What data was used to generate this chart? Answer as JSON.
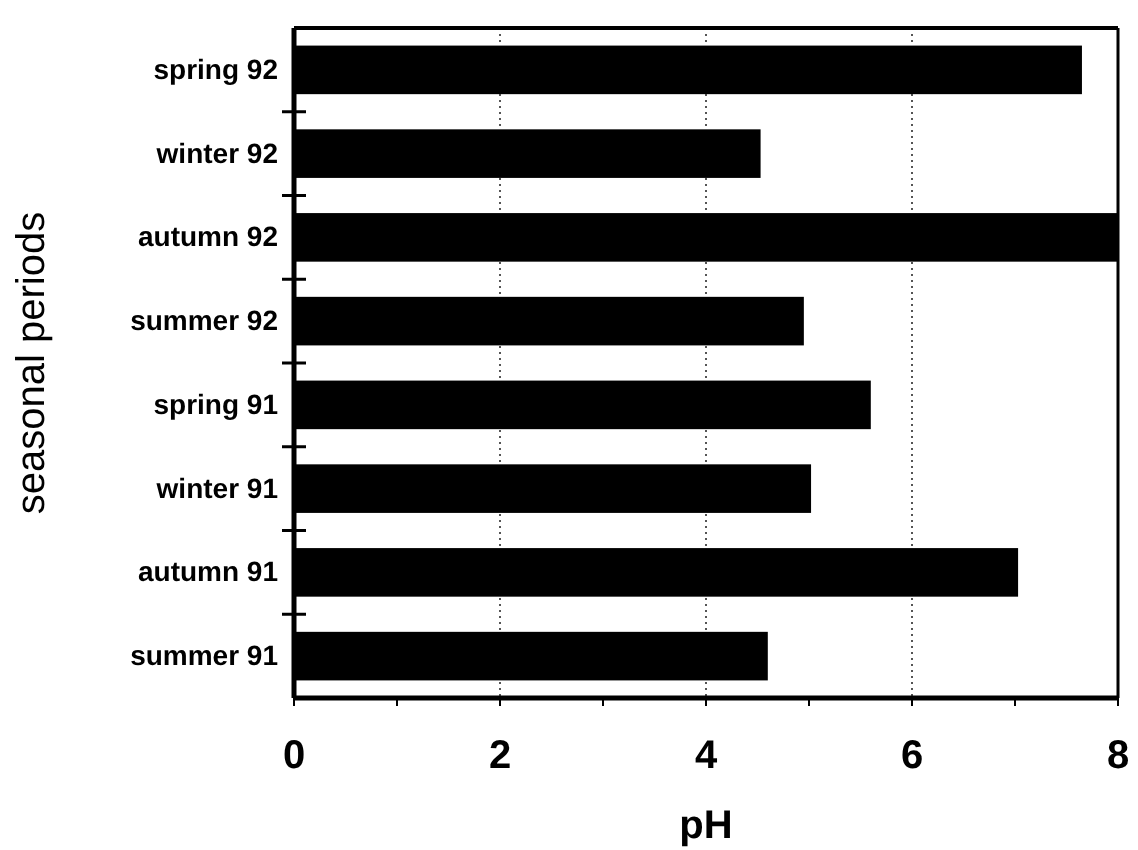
{
  "chart_data": {
    "type": "bar",
    "orientation": "horizontal",
    "xlabel": "pH",
    "ylabel": "seasonal periods",
    "categories": [
      "spring 92",
      "winter 92",
      "autumn 92",
      "summer 92",
      "spring 91",
      "winter 91",
      "autumn 91",
      "summer 91"
    ],
    "values": [
      7.65,
      4.53,
      8.0,
      4.95,
      5.6,
      5.02,
      7.03,
      4.6
    ],
    "color": "#000000",
    "xlim": [
      0,
      8
    ],
    "xticks": [
      0,
      {
        "value": 1,
        "label": null
      },
      2,
      {
        "value": 3,
        "label": null
      },
      4,
      {
        "value": 5,
        "label": null
      },
      6,
      {
        "value": 7,
        "label": null
      },
      8
    ],
    "grid": "x"
  }
}
